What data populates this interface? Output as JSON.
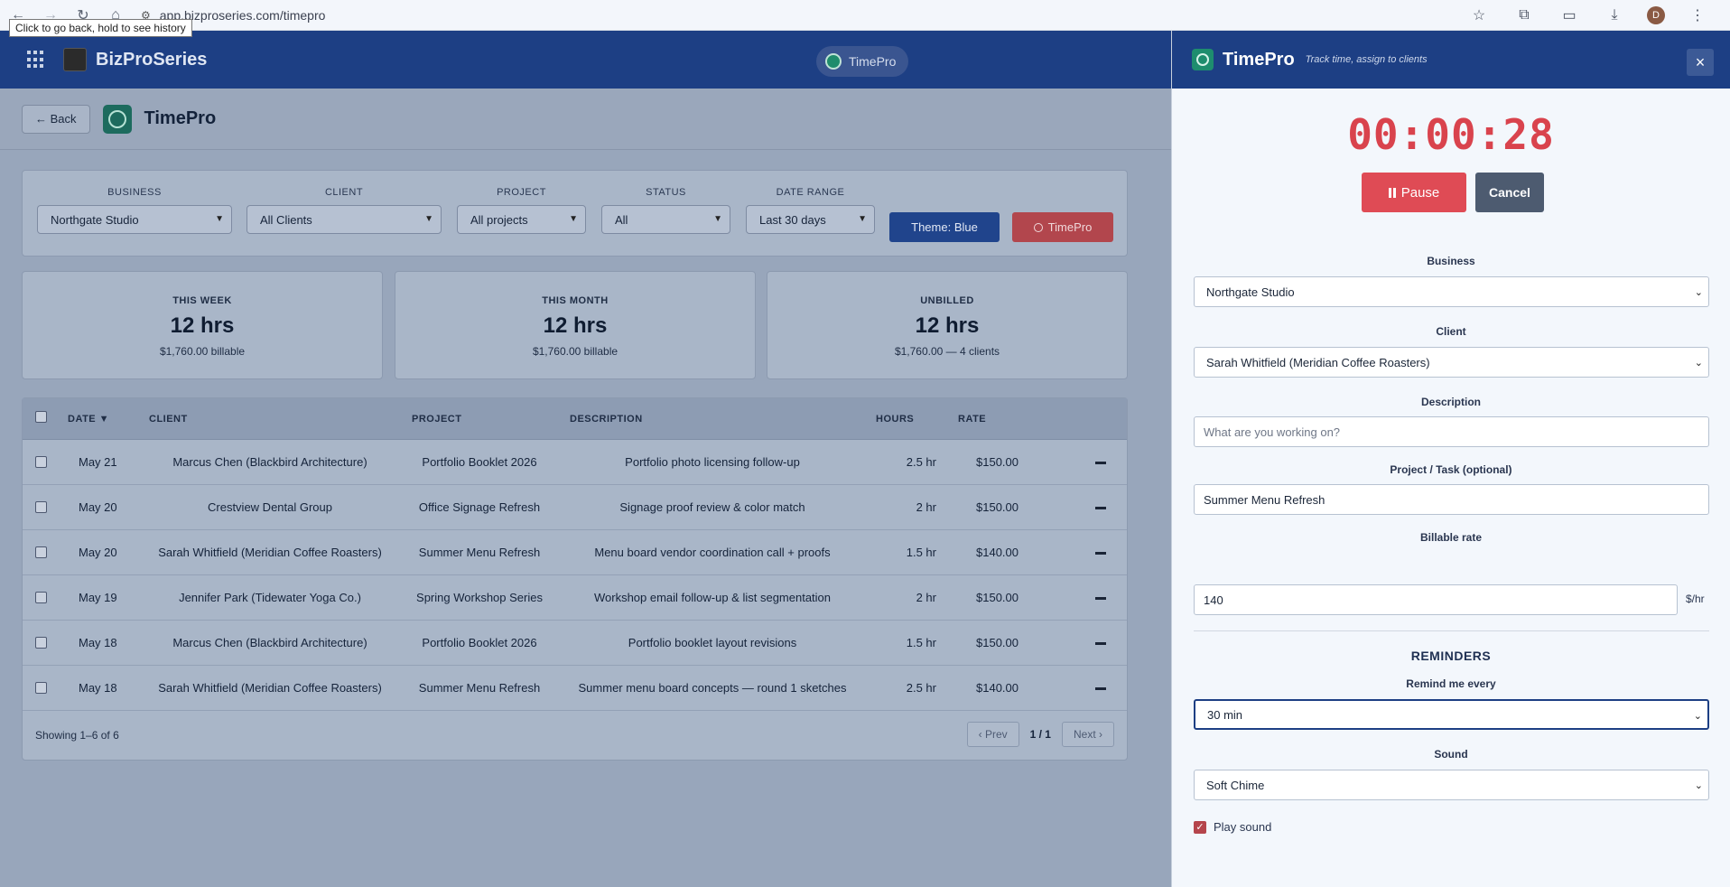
{
  "browser": {
    "url": "app.bizproseries.com/timepro",
    "tooltip": "Click to go back, hold to see history",
    "profile_initial": "D"
  },
  "app": {
    "brand": "BizProSeries",
    "center_pill": "TimePro"
  },
  "page": {
    "back_label": "← Back",
    "title": "TimePro"
  },
  "filters": {
    "business": {
      "label": "BUSINESS",
      "value": "Northgate Studio"
    },
    "client": {
      "label": "CLIENT",
      "value": "All Clients"
    },
    "project": {
      "label": "PROJECT",
      "value": "All projects"
    },
    "status": {
      "label": "STATUS",
      "value": "All"
    },
    "date_range": {
      "label": "DATE RANGE",
      "value": "Last 30 days"
    },
    "theme_button": "Theme: Blue",
    "timepro_button": "TimePro"
  },
  "stats": [
    {
      "label": "THIS WEEK",
      "value": "12 hrs",
      "sub": "$1,760.00 billable"
    },
    {
      "label": "THIS MONTH",
      "value": "12 hrs",
      "sub": "$1,760.00 billable"
    },
    {
      "label": "UNBILLED",
      "value": "12 hrs",
      "sub": "$1,760.00 — 4 clients"
    }
  ],
  "table": {
    "headers": {
      "date": "DATE ▼",
      "client": "CLIENT",
      "project": "PROJECT",
      "description": "DESCRIPTION",
      "hours": "HOURS",
      "rate": "RATE"
    },
    "rows": [
      {
        "date": "May 21",
        "client": "Marcus Chen (Blackbird Architecture)",
        "project": "Portfolio Booklet 2026",
        "description": "Portfolio photo licensing follow-up",
        "hours": "2.5 hr",
        "rate": "$150.00"
      },
      {
        "date": "May 20",
        "client": "Crestview Dental Group",
        "project": "Office Signage Refresh",
        "description": "Signage proof review & color match",
        "hours": "2 hr",
        "rate": "$150.00"
      },
      {
        "date": "May 20",
        "client": "Sarah Whitfield (Meridian Coffee Roasters)",
        "project": "Summer Menu Refresh",
        "description": "Menu board vendor coordination call + proofs",
        "hours": "1.5 hr",
        "rate": "$140.00"
      },
      {
        "date": "May 19",
        "client": "Jennifer Park (Tidewater Yoga Co.)",
        "project": "Spring Workshop Series",
        "description": "Workshop email follow-up & list segmentation",
        "hours": "2 hr",
        "rate": "$150.00"
      },
      {
        "date": "May 18",
        "client": "Marcus Chen (Blackbird Architecture)",
        "project": "Portfolio Booklet 2026",
        "description": "Portfolio booklet layout revisions",
        "hours": "1.5 hr",
        "rate": "$150.00"
      },
      {
        "date": "May 18",
        "client": "Sarah Whitfield (Meridian Coffee Roasters)",
        "project": "Summer Menu Refresh",
        "description": "Summer menu board concepts — round 1 sketches",
        "hours": "2.5 hr",
        "rate": "$140.00"
      }
    ],
    "showing": "Showing 1–6 of 6",
    "prev": "‹ Prev",
    "page": "1 / 1",
    "next": "Next ›"
  },
  "panel": {
    "title": "TimePro",
    "subtitle": "Track time, assign to clients",
    "close": "×",
    "timer": "00:00:28",
    "pause": "Pause",
    "cancel": "Cancel",
    "business_label": "Business",
    "business_value": "Northgate Studio",
    "client_label": "Client",
    "client_value": "Sarah Whitfield (Meridian Coffee Roasters)",
    "description_label": "Description",
    "description_placeholder": "What are you working on?",
    "project_label": "Project / Task (optional)",
    "project_value": "Summer Menu Refresh",
    "rate_label": "Billable rate",
    "rate_value": "140",
    "rate_unit": "$/hr",
    "reminders_title": "REMINDERS",
    "remind_label": "Remind me every",
    "remind_value": "30 min",
    "sound_label": "Sound",
    "sound_value": "Soft Chime",
    "play_sound_label": "Play sound",
    "play_sound_checked": true
  }
}
